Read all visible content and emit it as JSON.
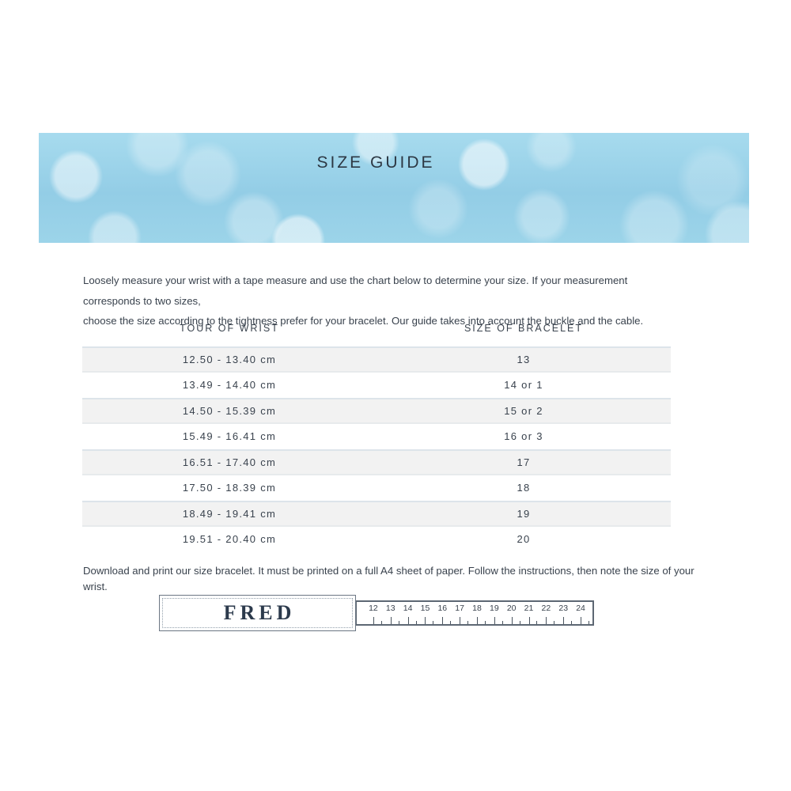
{
  "banner": {
    "title": "SIZE GUIDE"
  },
  "intro": {
    "lines": [
      "Loosely measure your wrist with a tape measure and use the chart below to determine your size. If your measurement corresponds to two sizes,",
      "choose the size according to the tightness prefer for your bracelet. Our guide takes into account the buckle and the cable."
    ]
  },
  "table": {
    "headers": [
      "TOUR OF WRIST",
      "SIZE OF BRACELET"
    ],
    "rows": [
      {
        "wrist": "12.50 - 13.40 cm",
        "size": "13"
      },
      {
        "wrist": "13.49 - 14.40 cm",
        "size": "14 or 1"
      },
      {
        "wrist": "14.50 - 15.39 cm",
        "size": "15 or 2"
      },
      {
        "wrist": "15.49 - 16.41 cm",
        "size": "16 or 3"
      },
      {
        "wrist": "16.51 - 17.40 cm",
        "size": "17"
      },
      {
        "wrist": "17.50 - 18.39 cm",
        "size": "18"
      },
      {
        "wrist": "18.49 - 19.41 cm",
        "size": "19"
      },
      {
        "wrist": "19.51 - 20.40 cm",
        "size": "20"
      }
    ]
  },
  "download_note": "Download and print our size bracelet. It must be printed on a full A4 sheet of paper. Follow the instructions, then note the size of your wrist.",
  "sizer": {
    "brand": "FRED",
    "ruler_numbers": [
      "12",
      "13",
      "14",
      "15",
      "16",
      "17",
      "18",
      "19",
      "20",
      "21",
      "22",
      "23",
      "24"
    ]
  },
  "colors": {
    "banner_blue": "#98d1e8",
    "text_dark": "#39424d",
    "row_gray": "#f2f2f2",
    "row_border": "#dde4ea",
    "sizer_border": "#5d6773"
  }
}
